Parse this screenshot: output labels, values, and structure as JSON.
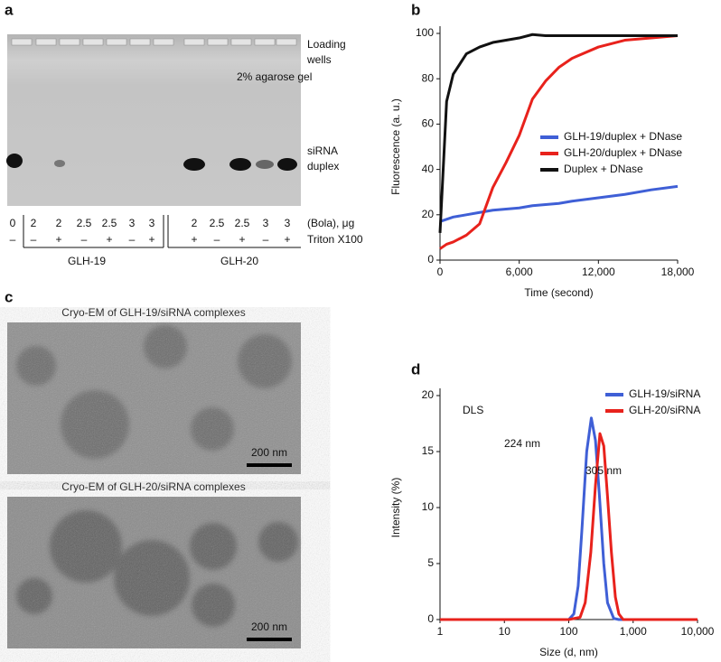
{
  "panel_a": {
    "label": "a",
    "loading_wells": [
      "Loading",
      "wells"
    ],
    "gel_note": "2% agarose gel",
    "sirna_duplex": [
      "siRNA",
      "duplex"
    ],
    "bola_label": "(Bola), μg",
    "triton_label": "Triton X100",
    "bola": [
      "0",
      "2",
      "2",
      "2.5",
      "2.5",
      "3",
      "3",
      "2",
      "2.5",
      "2.5",
      "3",
      "3"
    ],
    "triton": [
      "–",
      "–",
      "+",
      "–",
      "+",
      "–",
      "+",
      "+",
      "–",
      "+",
      "–",
      "+"
    ],
    "groups": [
      {
        "name": "GLH-19",
        "color": "#4f6fd8"
      },
      {
        "name": "GLH-20",
        "color": "#e0281f"
      }
    ]
  },
  "panel_c": {
    "label": "c",
    "titles": [
      "Cryo-EM of GLH-19/siRNA complexes",
      "Cryo-EM of GLH-20/siRNA complexes"
    ],
    "scale_bar": "200 nm"
  },
  "chart_data": [
    {
      "type": "line",
      "panel": "b",
      "xlabel": "Time (second)",
      "ylabel": "Fluorescence (a. u.)",
      "xlim": [
        0,
        18000
      ],
      "ylim": [
        0,
        100
      ],
      "xticks": [
        0,
        {
          "value": 6000,
          "label": "6,000"
        },
        {
          "value": 12000,
          "label": "12,000"
        },
        {
          "value": 18000,
          "label": "18,000"
        }
      ],
      "yticks": [
        0,
        20,
        40,
        60,
        80,
        100
      ],
      "legend": "center right",
      "series": [
        {
          "name": "GLH-19/duplex + DNase",
          "color": "#3f5fd6",
          "x": [
            0,
            500,
            1000,
            2000,
            3000,
            4000,
            5000,
            6000,
            7000,
            8000,
            9000,
            10000,
            12000,
            14000,
            16000,
            18000
          ],
          "values": [
            17,
            18,
            19,
            20,
            21,
            22,
            22.5,
            23,
            24,
            24.5,
            25,
            26,
            27.5,
            29,
            31,
            32.5
          ]
        },
        {
          "name": "GLH-20/duplex + DNase",
          "color": "#e8221c",
          "x": [
            0,
            500,
            1000,
            2000,
            3000,
            4000,
            5000,
            6000,
            7000,
            8000,
            9000,
            10000,
            12000,
            14000,
            16000,
            18000
          ],
          "values": [
            5,
            7,
            8,
            11,
            16,
            32,
            43,
            55,
            71,
            79,
            85,
            89,
            94,
            97,
            98,
            99
          ]
        },
        {
          "name": "Duplex + DNase",
          "color": "#111111",
          "x": [
            0,
            500,
            1000,
            2000,
            3000,
            4000,
            5000,
            6000,
            7000,
            8000,
            9000,
            10000,
            12000,
            14000,
            16000,
            18000
          ],
          "values": [
            12,
            70,
            82,
            91,
            94,
            96,
            97,
            98,
            99.5,
            99,
            99,
            99,
            99,
            99,
            99,
            99
          ]
        }
      ]
    },
    {
      "type": "line",
      "panel": "d",
      "title": "DLS",
      "xlabel": "Size (d, nm)",
      "ylabel": "Intensity (%)",
      "xscale": "log",
      "xlim": [
        1,
        10000
      ],
      "ylim": [
        0,
        20
      ],
      "xticks": [
        1,
        10,
        100,
        {
          "value": 1000,
          "label": "1,000"
        },
        {
          "value": 10000,
          "label": "10,000"
        }
      ],
      "yticks": [
        0,
        5,
        10,
        15,
        20
      ],
      "legend": "upper right",
      "annotations": [
        {
          "text": "224 nm",
          "color": "#3f5fd6"
        },
        {
          "text": "305 nm",
          "color": "#e8221c"
        }
      ],
      "series": [
        {
          "name": "GLH-19/siRNA",
          "color": "#3f5fd6",
          "x": [
            1,
            100,
            120,
            140,
            160,
            190,
            224,
            260,
            300,
            350,
            400,
            500,
            600,
            10000
          ],
          "values": [
            0,
            0,
            0.5,
            3,
            8,
            15,
            18,
            16,
            11,
            5,
            1.5,
            0.1,
            0,
            0
          ]
        },
        {
          "name": "GLH-20/siRNA",
          "color": "#e8221c",
          "x": [
            1,
            100,
            150,
            180,
            220,
            260,
            305,
            350,
            400,
            460,
            530,
            600,
            700,
            10000
          ],
          "values": [
            0,
            0,
            0.2,
            1.5,
            6,
            12,
            16.6,
            15.5,
            11,
            6,
            2,
            0.5,
            0,
            0
          ]
        }
      ]
    }
  ]
}
